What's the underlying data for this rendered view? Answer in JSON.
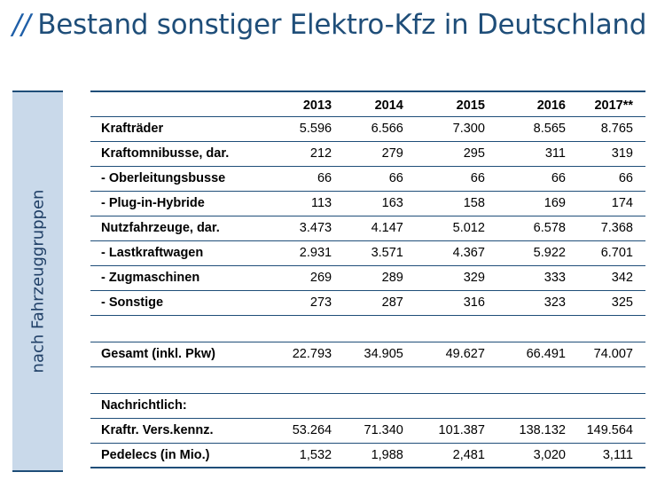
{
  "title": "Bestand sonstiger Elektro-Kfz in Deutschland",
  "title_prefix": "//",
  "side_label": "nach Fahrzeuggruppen",
  "header": [
    "2013",
    "2014",
    "2015",
    "2016",
    "2017**"
  ],
  "rows": [
    {
      "label": "Krafträder",
      "values": [
        "5.596",
        "6.566",
        "7.300",
        "8.565",
        "8.765"
      ]
    },
    {
      "label": "Kraftomnibusse, dar.",
      "values": [
        "212",
        "279",
        "295",
        "311",
        "319"
      ]
    },
    {
      "label": "- Oberleitungsbusse",
      "values": [
        "66",
        "66",
        "66",
        "66",
        "66"
      ]
    },
    {
      "label": "- Plug-in-Hybride",
      "values": [
        "113",
        "163",
        "158",
        "169",
        "174"
      ]
    },
    {
      "label": "Nutzfahrzeuge, dar.",
      "values": [
        "3.473",
        "4.147",
        "5.012",
        "6.578",
        "7.368"
      ]
    },
    {
      "label": "- Lastkraftwagen",
      "values": [
        "2.931",
        "3.571",
        "4.367",
        "5.922",
        "6.701"
      ]
    },
    {
      "label": "- Zugmaschinen",
      "values": [
        "269",
        "289",
        "329",
        "333",
        "342"
      ]
    },
    {
      "label": "- Sonstige",
      "values": [
        "273",
        "287",
        "316",
        "323",
        "325"
      ]
    }
  ],
  "total": {
    "label": "Gesamt (inkl. Pkw)",
    "values": [
      "22.793",
      "34.905",
      "49.627",
      "66.491",
      "74.007"
    ]
  },
  "memo_heading": "Nachrichtlich:",
  "memo_rows": [
    {
      "label": "Kraftr. Vers.kennz.",
      "values": [
        "53.264",
        "71.340",
        "101.387",
        "138.132",
        "149.564"
      ]
    },
    {
      "label": "Pedelecs (in Mio.)",
      "values": [
        "1,532",
        "1,988",
        "2,481",
        "3,020",
        "3,111"
      ]
    }
  ],
  "colors": {
    "title": "#1f4e79",
    "rule": "#1f4e79",
    "side_bg": "#c9d9ea"
  }
}
